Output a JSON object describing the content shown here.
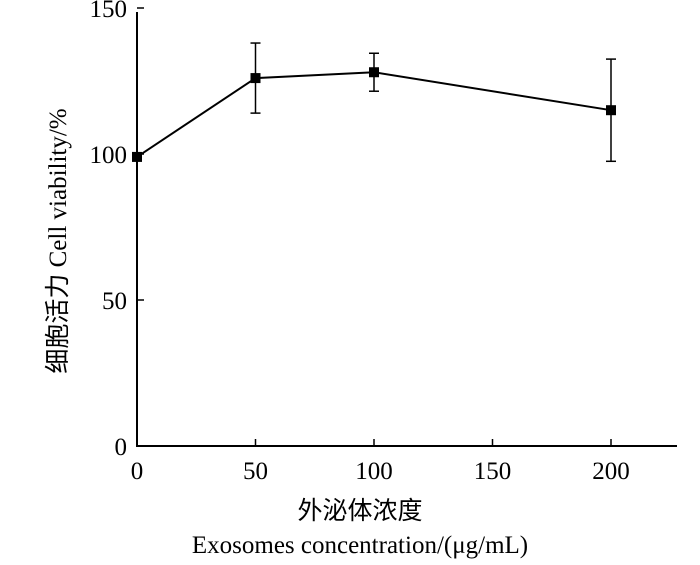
{
  "chart_data": {
    "type": "line",
    "x": [
      0,
      50,
      100,
      200
    ],
    "y": [
      99,
      126,
      128,
      115
    ],
    "error": [
      0,
      12,
      6.5,
      17.5
    ],
    "xlabel_cn": "外泌体浓度",
    "xlabel_en": "Exosomes concentration/(μg/mL)",
    "ylabel": "细胞活力  Cell viability/%",
    "xlim": [
      0,
      230
    ],
    "ylim": [
      0,
      150
    ],
    "xticks": [
      0,
      50,
      100,
      150,
      200
    ],
    "yticks": [
      0,
      50,
      100,
      150
    ],
    "grid": false,
    "legend": "none",
    "colors": {
      "line": "#000000",
      "marker": "#000000"
    }
  }
}
